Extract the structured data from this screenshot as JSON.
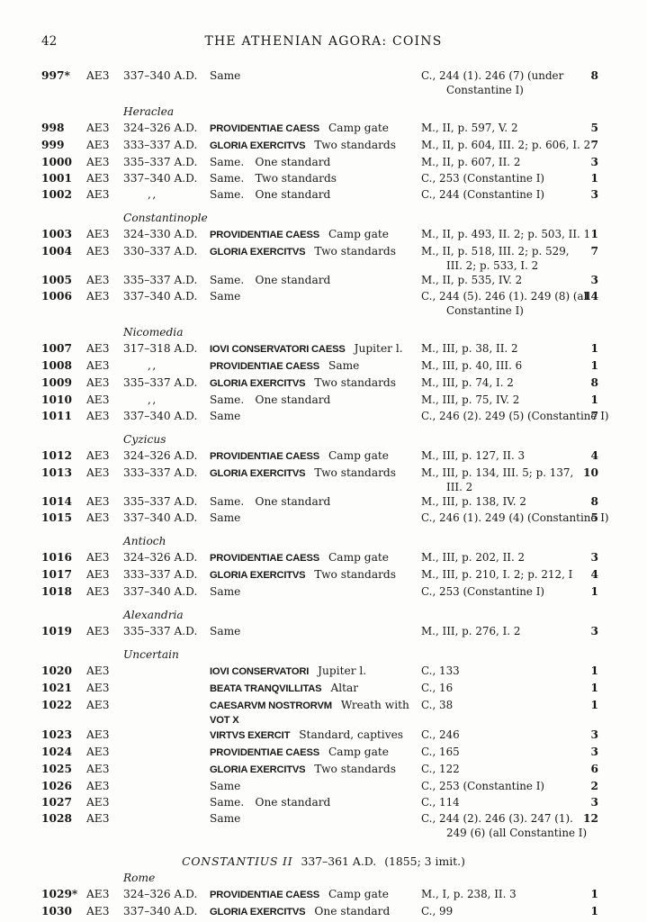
{
  "page": {
    "number": "42",
    "title": "THE ATHENIAN AGORA: COINS"
  },
  "catalog": {
    "rows": [
      {
        "type": "entry",
        "num": "997*",
        "ae": "AE3",
        "date": "337–340 A.D.",
        "legend": "",
        "desc": "Same",
        "ref": "C., 244 (1). 246 (7) (under",
        "ref2": "Constantine I)",
        "count": "8"
      },
      {
        "type": "city",
        "label": "Heraclea"
      },
      {
        "type": "entry",
        "num": "998",
        "ae": "AE3",
        "date": "324–326 A.D.",
        "legend": "PROVIDENTIAE CAESS",
        "desc": "Camp gate",
        "ref": "M., II, p. 597, V. 2",
        "count": "5"
      },
      {
        "type": "entry",
        "num": "999",
        "ae": "AE3",
        "date": "333–337 A.D.",
        "legend": "GLORIA EXERCITVS",
        "desc": "Two standards",
        "ref": "M., II, p. 604, III. 2; p. 606, I. 2",
        "count": "7"
      },
      {
        "type": "entry",
        "num": "1000",
        "ae": "AE3",
        "date": "335–337 A.D.",
        "legend": "",
        "desc": "Same. One standard",
        "ref": "M., II, p. 607, II. 2",
        "count": "3"
      },
      {
        "type": "entry",
        "num": "1001",
        "ae": "AE3",
        "date": "337–340 A.D.",
        "legend": "",
        "desc": "Same. Two standards",
        "ref": "C., 253 (Constantine I)",
        "count": "1"
      },
      {
        "type": "entry",
        "num": "1002",
        "ae": "AE3",
        "date": ",,",
        "ditto": true,
        "legend": "",
        "desc": "Same. One standard",
        "ref": "C., 244 (Constantine I)",
        "count": "3"
      },
      {
        "type": "city",
        "label": "Constantinople"
      },
      {
        "type": "entry",
        "num": "1003",
        "ae": "AE3",
        "date": "324–330 A.D.",
        "legend": "PROVIDENTIAE CAESS",
        "desc": "Camp gate",
        "ref": "M., II, p. 493, II. 2; p. 503, II. 1",
        "count": "1"
      },
      {
        "type": "entry",
        "num": "1004",
        "ae": "AE3",
        "date": "330–337 A.D.",
        "legend": "GLORIA EXERCITVS",
        "desc": "Two standards",
        "ref": "M., II, p. 518, III. 2; p. 529,",
        "ref2": "III. 2; p. 533, I. 2",
        "count": "7"
      },
      {
        "type": "entry",
        "num": "1005",
        "ae": "AE3",
        "date": "335–337 A.D.",
        "legend": "",
        "desc": "Same. One standard",
        "ref": "M., II, p. 535, IV. 2",
        "count": "3"
      },
      {
        "type": "entry",
        "num": "1006",
        "ae": "AE3",
        "date": "337–340 A.D.",
        "legend": "",
        "desc": "Same",
        "ref": "C., 244 (5). 246 (1). 249 (8) (all",
        "ref2": "Constantine I)",
        "count": "14"
      },
      {
        "type": "city",
        "label": "Nicomedia"
      },
      {
        "type": "entry",
        "num": "1007",
        "ae": "AE3",
        "date": "317–318 A.D.",
        "legend": "IOVI CONSERVATORI CAESS",
        "desc": "Jupiter l.",
        "ref": "M., III, p. 38, II. 2",
        "count": "1"
      },
      {
        "type": "entry",
        "num": "1008",
        "ae": "AE3",
        "date": ",,",
        "ditto": true,
        "legend": "PROVIDENTIAE CAESS",
        "desc": "Same",
        "ref": "M., III, p. 40, III. 6",
        "count": "1"
      },
      {
        "type": "entry",
        "num": "1009",
        "ae": "AE3",
        "date": "335–337 A.D.",
        "legend": "GLORIA EXERCITVS",
        "desc": "Two standards",
        "ref": "M., III, p. 74, I. 2",
        "count": "8"
      },
      {
        "type": "entry",
        "num": "1010",
        "ae": "AE3",
        "date": ",,",
        "ditto": true,
        "legend": "",
        "desc": "Same. One standard",
        "ref": "M., III, p. 75, IV. 2",
        "count": "1"
      },
      {
        "type": "entry",
        "num": "1011",
        "ae": "AE3",
        "date": "337–340 A.D.",
        "legend": "",
        "desc": "Same",
        "ref": "C., 246 (2). 249 (5) (Constantine I)",
        "count": "7"
      },
      {
        "type": "city",
        "label": "Cyzicus"
      },
      {
        "type": "entry",
        "num": "1012",
        "ae": "AE3",
        "date": "324–326 A.D.",
        "legend": "PROVIDENTIAE CAESS",
        "desc": "Camp gate",
        "ref": "M., III, p. 127, II. 3",
        "count": "4"
      },
      {
        "type": "entry",
        "num": "1013",
        "ae": "AE3",
        "date": "333–337 A.D.",
        "legend": "GLORIA EXERCITVS",
        "desc": "Two standards",
        "ref": "M., III, p. 134, III. 5; p. 137,",
        "ref2": "III. 2",
        "count": "10"
      },
      {
        "type": "entry",
        "num": "1014",
        "ae": "AE3",
        "date": "335–337 A.D.",
        "legend": "",
        "desc": "Same. One standard",
        "ref": "M., III, p. 138, IV. 2",
        "count": "8"
      },
      {
        "type": "entry",
        "num": "1015",
        "ae": "AE3",
        "date": "337–340 A.D.",
        "legend": "",
        "desc": "Same",
        "ref": "C., 246 (1). 249 (4) (Constantine I)",
        "count": "5"
      },
      {
        "type": "city",
        "label": "Antioch"
      },
      {
        "type": "entry",
        "num": "1016",
        "ae": "AE3",
        "date": "324–326 A.D.",
        "legend": "PROVIDENTIAE CAESS",
        "desc": "Camp gate",
        "ref": "M., III, p. 202, II. 2",
        "count": "3"
      },
      {
        "type": "entry",
        "num": "1017",
        "ae": "AE3",
        "date": "333–337 A.D.",
        "legend": "GLORIA EXERCITVS",
        "desc": "Two standards",
        "ref": "M., III, p. 210, I. 2; p. 212, I",
        "count": "4"
      },
      {
        "type": "entry",
        "num": "1018",
        "ae": "AE3",
        "date": "337–340 A.D.",
        "legend": "",
        "desc": "Same",
        "ref": "C., 253 (Constantine I)",
        "count": "1"
      },
      {
        "type": "city",
        "label": "Alexandria"
      },
      {
        "type": "entry",
        "num": "1019",
        "ae": "AE3",
        "date": "335–337 A.D.",
        "legend": "",
        "desc": "Same",
        "ref": "M., III, p. 276, I. 2",
        "count": "3"
      },
      {
        "type": "city",
        "label": "Uncertain"
      },
      {
        "type": "entry",
        "num": "1020",
        "ae": "AE3",
        "date": "",
        "legend": "IOVI CONSERVATORI",
        "desc": "Jupiter l.",
        "ref": "C., 133",
        "count": "1"
      },
      {
        "type": "entry",
        "num": "1021",
        "ae": "AE3",
        "date": "",
        "legend": "BEATA TRANQVILLITAS",
        "desc": "Altar",
        "ref": "C., 16",
        "count": "1"
      },
      {
        "type": "entry",
        "num": "1022",
        "ae": "AE3",
        "date": "",
        "legend": "CAESARVM NOSTRORVM",
        "desc": "Wreath with",
        "legend2": "VOT X",
        "ref": "C., 38",
        "count": "1"
      },
      {
        "type": "entry",
        "num": "1023",
        "ae": "AE3",
        "date": "",
        "legend": "VIRTVS EXERCIT",
        "desc": "Standard, captives",
        "ref": "C., 246",
        "count": "3"
      },
      {
        "type": "entry",
        "num": "1024",
        "ae": "AE3",
        "date": "",
        "legend": "PROVIDENTIAE CAESS",
        "desc": "Camp gate",
        "ref": "C., 165",
        "count": "3"
      },
      {
        "type": "entry",
        "num": "1025",
        "ae": "AE3",
        "date": "",
        "legend": "GLORIA EXERCITVS",
        "desc": "Two standards",
        "ref": "C., 122",
        "count": "6"
      },
      {
        "type": "entry",
        "num": "1026",
        "ae": "AE3",
        "date": "",
        "legend": "",
        "desc": "Same",
        "ref": "C., 253 (Constantine I)",
        "count": "2"
      },
      {
        "type": "entry",
        "num": "1027",
        "ae": "AE3",
        "date": "",
        "legend": "",
        "desc": "Same. One standard",
        "ref": "C., 114",
        "count": "3"
      },
      {
        "type": "entry",
        "num": "1028",
        "ae": "AE3",
        "date": "",
        "legend": "",
        "desc": "Same",
        "ref": "C., 244 (2). 246 (3). 247 (1).",
        "ref2": "249 (6) (all Constantine I)",
        "count": "12"
      },
      {
        "type": "emperor",
        "name": "CONSTANTIUS II",
        "dates": "337–361 A.D.",
        "note": "(1855; 3 imit.)"
      },
      {
        "type": "city",
        "label": "Rome",
        "tight": true
      },
      {
        "type": "entry",
        "num": "1029*",
        "ae": "AE3",
        "date": "324–326 A.D.",
        "legend": "PROVIDENTIAE CAESS",
        "desc": "Camp gate",
        "ref": "M., I, p. 238, II. 3",
        "count": "1"
      },
      {
        "type": "entry",
        "num": "1030",
        "ae": "AE3",
        "date": "337–340 A.D.",
        "legend": "GLORIA EXERCITVS",
        "desc": "One standard",
        "ref": "C., 99",
        "count": "1"
      }
    ]
  }
}
